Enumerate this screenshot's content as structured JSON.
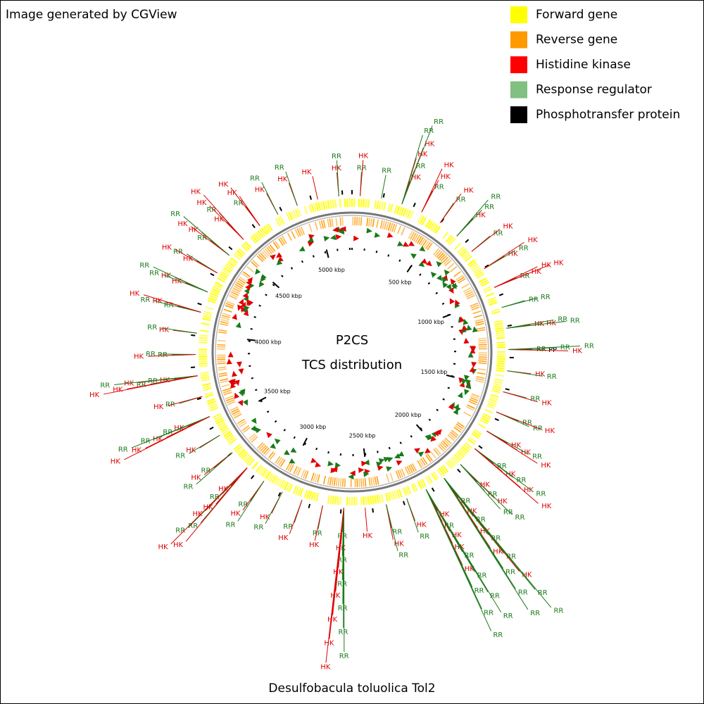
{
  "header": {
    "title": "Image generated by CGView"
  },
  "legend": [
    {
      "label": "Forward gene",
      "color": "#ffff00"
    },
    {
      "label": "Reverse gene",
      "color": "#ff9900"
    },
    {
      "label": "Histidine kinase",
      "color": "#ff0000"
    },
    {
      "label": "Response regulator",
      "color": "#80c080"
    },
    {
      "label": "Phosphotransfer protein",
      "color": "#000000"
    }
  ],
  "label_colors": {
    "HK": "#e00000",
    "RR": "#1a7a1a",
    "PP": "#000000"
  },
  "center": {
    "title": "P2CS",
    "subtitle": "TCS distribution"
  },
  "footer": "Desulfobacula toluolica Tol2",
  "ticks": [
    "500 kbp",
    "1000 kbp",
    "1500 kbp",
    "2000 kbp",
    "2500 kbp",
    "3000 kbp",
    "3500 kbp",
    "4000 kbp",
    "4500 kbp",
    "5000 kbp"
  ],
  "clusters": [
    [
      "RR",
      "HK"
    ],
    [
      "RR"
    ],
    [
      "HK",
      "RR",
      "HK",
      "HK",
      "RR",
      "RR"
    ],
    [
      "RR",
      "HK",
      "HK"
    ],
    [
      "RR",
      "HK"
    ],
    [
      "HK",
      "RR",
      "RR"
    ],
    [
      "RR",
      "HK"
    ],
    [
      "HK",
      "RR",
      "HK"
    ],
    [
      "RR",
      "HK",
      "HK",
      "HK"
    ],
    [
      "RR",
      "RR"
    ],
    [
      "HK",
      "HK",
      "RR",
      "RR"
    ],
    [
      "RR",
      "PP",
      "RR",
      "HK",
      "RR"
    ],
    [
      "HK",
      "RR"
    ],
    [
      "RR",
      "HK"
    ],
    [
      "RR",
      "RR",
      "HK"
    ],
    [
      "HK",
      "HK",
      "RR",
      "HK"
    ],
    [
      "RR",
      "HK",
      "RR",
      "HK",
      "RR",
      "HK"
    ],
    [
      "HK",
      "RR",
      "HK",
      "RR",
      "RR"
    ],
    [
      "RR",
      "HK",
      "RR",
      "HK",
      "RR",
      "HK",
      "RR",
      "RR",
      "HK",
      "RR",
      "RR",
      "RR",
      "RR"
    ],
    [
      "HK",
      "RR",
      "HK",
      "HK",
      "RR",
      "HK",
      "RR",
      "RR",
      "RR",
      "RR",
      "RR",
      "RR"
    ],
    [
      "HK",
      "RR"
    ],
    [
      "RR",
      "HK",
      "RR"
    ],
    [
      "HK"
    ],
    [
      "RR",
      "HK",
      "RR",
      "HK",
      "RR",
      "HK",
      "RR",
      "HK",
      "RR",
      "HK",
      "RR",
      "HK"
    ],
    [
      "RR",
      "HK"
    ],
    [
      "RR",
      "HK"
    ],
    [
      "HK",
      "RR"
    ],
    [
      "RR",
      "HK",
      "RR"
    ],
    [
      "HK",
      "RR",
      "HK",
      "HK",
      "RR",
      "RR",
      "HK",
      "HK"
    ],
    [
      "RR",
      "HK",
      "RR"
    ],
    [
      "HK",
      "RR"
    ],
    [
      "HK",
      "RR",
      "HK",
      "RR",
      "HK",
      "RR",
      "HK"
    ],
    [
      "RR",
      "HK"
    ],
    [
      "HK",
      "RR",
      "RR",
      "HK",
      "HK",
      "RR",
      "HK"
    ],
    [
      "RR",
      "RR",
      "HK"
    ],
    [
      "HK",
      "RR"
    ],
    [
      "RR",
      "HK",
      "RR",
      "HK"
    ],
    [
      "HK",
      "HK",
      "RR",
      "RR"
    ],
    [
      "HK",
      "RR",
      "HK"
    ],
    [
      "RR",
      "HK",
      "HK",
      "RR"
    ],
    [
      "HK",
      "RR",
      "HK",
      "HK"
    ],
    [
      "RR",
      "HK",
      "HK"
    ],
    [
      "HK",
      "RR"
    ],
    [
      "HK",
      "RR"
    ],
    [
      "HK"
    ],
    [
      "HK",
      "RR"
    ]
  ]
}
